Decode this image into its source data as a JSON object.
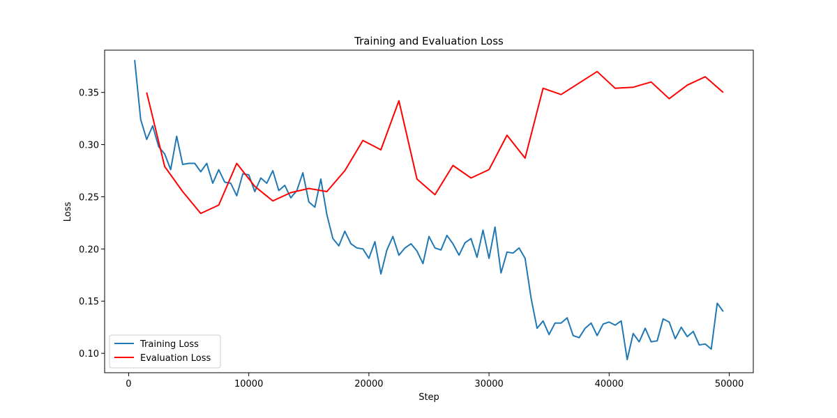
{
  "chart_data": {
    "type": "line",
    "title": "Training and Evaluation Loss",
    "xlabel": "Step",
    "ylabel": "Loss",
    "xlim": [
      -2000,
      52000
    ],
    "ylim": [
      0.0814,
      0.3905
    ],
    "xticks": [
      0,
      10000,
      20000,
      30000,
      40000,
      50000
    ],
    "yticks": [
      0.1,
      0.15,
      0.2,
      0.25,
      0.3,
      0.35
    ],
    "grid": false,
    "legend_position": "lower-left",
    "series": [
      {
        "name": "Training Loss",
        "color": "#1f77b4",
        "x": [
          500,
          1000,
          1500,
          2000,
          2500,
          3000,
          3500,
          4000,
          4500,
          5000,
          5500,
          6000,
          6500,
          7000,
          7500,
          8000,
          8500,
          9000,
          9500,
          10000,
          10500,
          11000,
          11500,
          12000,
          12500,
          13000,
          13500,
          14000,
          14500,
          15000,
          15500,
          16000,
          16500,
          17000,
          17500,
          18000,
          18500,
          19000,
          19500,
          20000,
          20500,
          21000,
          21500,
          22000,
          22500,
          23000,
          23500,
          24000,
          24500,
          25000,
          25500,
          26000,
          26500,
          27000,
          27500,
          28000,
          28500,
          29000,
          29500,
          30000,
          30500,
          31000,
          31500,
          32000,
          32500,
          33000,
          33500,
          34000,
          34500,
          35000,
          35500,
          36000,
          36500,
          37000,
          37500,
          38000,
          38500,
          39000,
          39500,
          40000,
          40500,
          41000,
          41500,
          42000,
          42500,
          43000,
          43500,
          44000,
          44500,
          45000,
          45500,
          46000,
          46500,
          47000,
          47500,
          48000,
          48500,
          49000,
          49500
        ],
        "y": [
          0.381,
          0.324,
          0.305,
          0.318,
          0.298,
          0.291,
          0.276,
          0.308,
          0.281,
          0.282,
          0.282,
          0.274,
          0.282,
          0.263,
          0.276,
          0.264,
          0.263,
          0.251,
          0.272,
          0.271,
          0.255,
          0.268,
          0.263,
          0.275,
          0.256,
          0.261,
          0.249,
          0.256,
          0.273,
          0.245,
          0.24,
          0.267,
          0.233,
          0.21,
          0.203,
          0.217,
          0.205,
          0.201,
          0.2,
          0.191,
          0.207,
          0.176,
          0.199,
          0.212,
          0.194,
          0.201,
          0.205,
          0.198,
          0.186,
          0.212,
          0.201,
          0.199,
          0.213,
          0.205,
          0.194,
          0.206,
          0.21,
          0.192,
          0.218,
          0.191,
          0.221,
          0.177,
          0.197,
          0.196,
          0.201,
          0.191,
          0.153,
          0.124,
          0.131,
          0.118,
          0.129,
          0.129,
          0.134,
          0.117,
          0.115,
          0.124,
          0.129,
          0.117,
          0.128,
          0.13,
          0.127,
          0.131,
          0.094,
          0.119,
          0.111,
          0.124,
          0.111,
          0.112,
          0.133,
          0.13,
          0.114,
          0.125,
          0.116,
          0.121,
          0.108,
          0.109,
          0.104,
          0.148,
          0.14
        ]
      },
      {
        "name": "Evaluation Loss",
        "color": "#ff0000",
        "x": [
          1500,
          3000,
          4500,
          6000,
          7500,
          9000,
          10500,
          12000,
          13500,
          15000,
          16500,
          18000,
          19500,
          21000,
          22500,
          24000,
          25500,
          27000,
          28500,
          30000,
          31500,
          33000,
          34500,
          36000,
          37500,
          39000,
          40500,
          42000,
          43500,
          45000,
          46500,
          48000,
          49500
        ],
        "y": [
          0.35,
          0.279,
          0.255,
          0.234,
          0.242,
          0.282,
          0.26,
          0.246,
          0.254,
          0.258,
          0.255,
          0.275,
          0.304,
          0.295,
          0.342,
          0.267,
          0.252,
          0.28,
          0.268,
          0.276,
          0.309,
          0.287,
          0.354,
          0.348,
          0.359,
          0.37,
          0.354,
          0.355,
          0.36,
          0.344,
          0.357,
          0.365,
          0.35
        ]
      }
    ]
  }
}
